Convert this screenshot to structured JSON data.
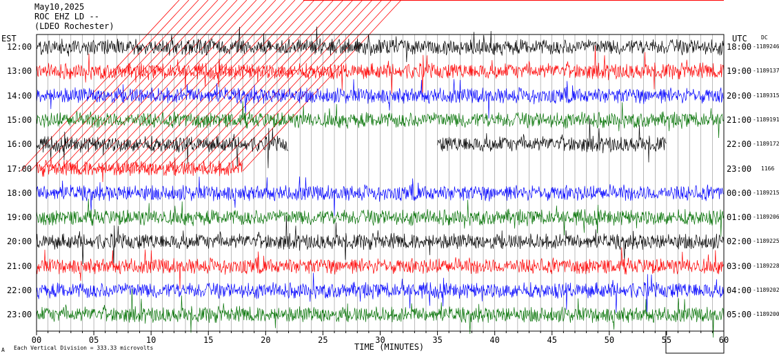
{
  "header": {
    "date": "May10,2025",
    "station": "ROC EHZ LD --",
    "network": "(LDEO Rochester)"
  },
  "left_title": "EST",
  "right_title": "UTC",
  "corner_label": "DC",
  "footer": {
    "scale_note": "Each Vertical Division = 333.33 microvolts",
    "corner_mark": "A"
  },
  "colors": {
    "trace_cycle": [
      "#000000",
      "#ff0000",
      "#0000ff",
      "#007000"
    ],
    "grid": "#000000",
    "event_marks": "#ff0000"
  },
  "chart_data": {
    "type": "line",
    "subtype": "helicorder",
    "title": "May10,2025",
    "xlabel": "TIME (MINUTES)",
    "xlim": [
      0,
      60
    ],
    "x_ticks": [
      "00",
      "05",
      "10",
      "15",
      "20",
      "25",
      "30",
      "35",
      "40",
      "45",
      "50",
      "55",
      "60"
    ],
    "grid": true,
    "rows": [
      {
        "local": "12:00",
        "utc": "18:00",
        "count": "-1189246",
        "color": "#000000",
        "data_end_min": 60
      },
      {
        "local": "13:00",
        "utc": "19:00",
        "count": "-1189137",
        "color": "#ff0000",
        "data_end_min": 60
      },
      {
        "local": "14:00",
        "utc": "20:00",
        "count": "-1189315",
        "color": "#0000ff",
        "data_end_min": 60
      },
      {
        "local": "15:00",
        "utc": "21:00",
        "count": "-1189191",
        "color": "#007000",
        "data_end_min": 60
      },
      {
        "local": "16:00",
        "utc": "22:00",
        "count": "-1189172",
        "color": "#000000",
        "data_end_min": 60,
        "gaps": [
          [
            22,
            35
          ],
          [
            55,
            60
          ]
        ]
      },
      {
        "local": "17:00",
        "utc": "23:00",
        "count": "1166",
        "color": "#ff0000",
        "data_end_min": 18
      },
      {
        "local": "18:00",
        "utc": "00:00",
        "count": "-1189215",
        "color": "#0000ff",
        "data_end_min": 60
      },
      {
        "local": "19:00",
        "utc": "01:00",
        "count": "-1189206",
        "color": "#007000",
        "data_end_min": 60
      },
      {
        "local": "20:00",
        "utc": "02:00",
        "count": "-1189225",
        "color": "#000000",
        "data_end_min": 60
      },
      {
        "local": "21:00",
        "utc": "03:00",
        "count": "-1189228",
        "color": "#ff0000",
        "data_end_min": 60
      },
      {
        "local": "22:00",
        "utc": "04:00",
        "count": "-1189202",
        "color": "#0000ff",
        "data_end_min": 60
      },
      {
        "local": "23:00",
        "utc": "05:00",
        "count": "-1189200",
        "color": "#007000",
        "data_end_min": 60
      }
    ]
  }
}
